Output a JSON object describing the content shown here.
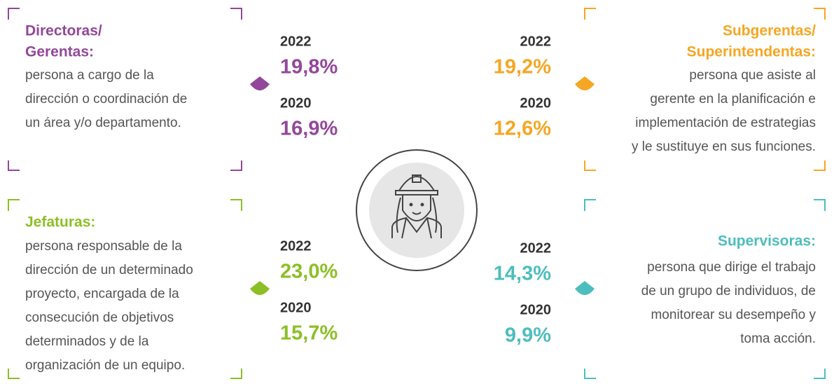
{
  "panels": [
    {
      "title": [
        "Directoras/",
        "Gerentas:"
      ],
      "color": "#93479a",
      "description": [
        "persona a cargo de la",
        "dirección o coordinación de",
        "un área y/o departamento."
      ],
      "stats": [
        {
          "year": "2022",
          "value": "19,8%"
        },
        {
          "year": "2020",
          "value": "16,9%"
        }
      ]
    },
    {
      "title": [
        "Subgerentas/",
        "Superintendentas:"
      ],
      "color": "#f5a623",
      "description": [
        "persona que asiste al",
        "gerente en la planificación e",
        "implementación de estrategias",
        "y le sustituye en sus funciones."
      ],
      "stats": [
        {
          "year": "2022",
          "value": "19,2%"
        },
        {
          "year": "2020",
          "value": "12,6%"
        }
      ]
    },
    {
      "title": [
        "Jefaturas:"
      ],
      "color": "#8cbf26",
      "description": [
        "persona responsable de la",
        "dirección de un determinado",
        "proyecto, encargada de la",
        "consecución de objetivos",
        "determinados y de la",
        "organización de un equipo."
      ],
      "stats": [
        {
          "year": "2022",
          "value": "23,0%"
        },
        {
          "year": "2020",
          "value": "15,7%"
        }
      ]
    },
    {
      "title": [
        "Supervisoras:"
      ],
      "color": "#4dbdbd",
      "description": [
        "persona que dirige el trabajo",
        "de un grupo de individuos, de",
        "monitorear su desempeño y",
        "toma acción."
      ],
      "stats": [
        {
          "year": "2022",
          "value": "14,3%"
        },
        {
          "year": "2020",
          "value": "9,9%"
        }
      ]
    }
  ]
}
